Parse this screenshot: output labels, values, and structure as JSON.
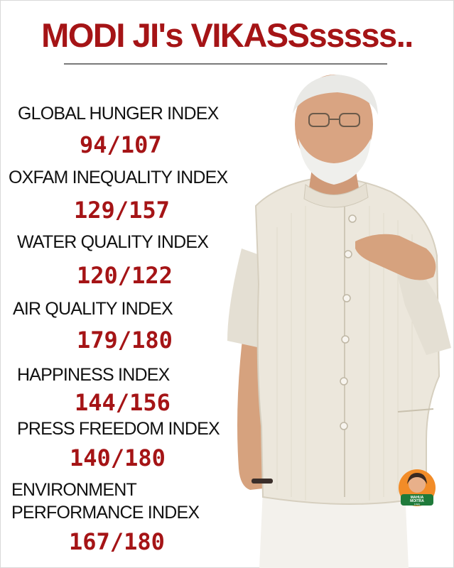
{
  "title": "MODI JI's VIKASSsssss..",
  "metrics": [
    {
      "label": "GLOBAL HUNGER INDEX",
      "value": "94/107"
    },
    {
      "label": "OXFAM INEQUALITY INDEX",
      "value": "129/157"
    },
    {
      "label": "WATER QUALITY INDEX",
      "value": "120/122"
    },
    {
      "label": "AIR QUALITY INDEX",
      "value": "179/180"
    },
    {
      "label": "HAPPINESS INDEX",
      "value": "144/156"
    },
    {
      "label": "PRESS FREEDOM INDEX",
      "value": "140/180"
    },
    {
      "label_line1": "ENVIRONMENT",
      "label_line2": "PERFORMANCE INDEX",
      "value": "167/180"
    }
  ],
  "colors": {
    "accent": "#a51416",
    "text": "#111111",
    "vest": "#ece7dc",
    "skin": "#d9a482"
  },
  "badge": {
    "line1": "MAHUA",
    "line2": "MOITRA",
    "line3": "FAN"
  }
}
